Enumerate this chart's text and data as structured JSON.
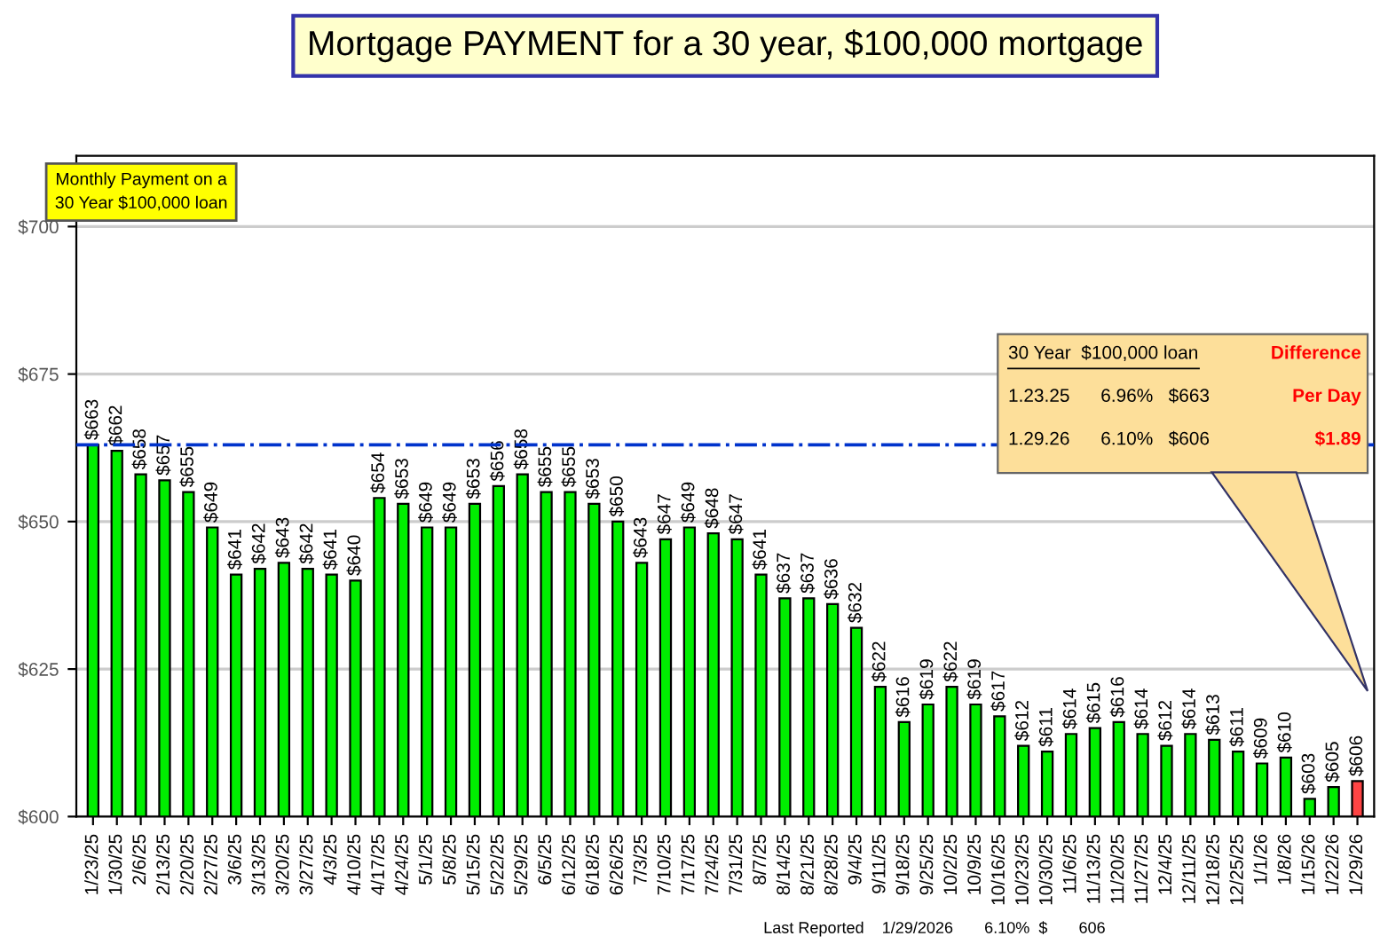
{
  "chart_data": {
    "type": "bar",
    "title": "Mortgage PAYMENT for a 30 year, $100,000 mortgage",
    "categories": [
      "1/23/25",
      "1/30/25",
      "2/6/25",
      "2/13/25",
      "2/20/25",
      "2/27/25",
      "3/6/25",
      "3/13/25",
      "3/20/25",
      "3/27/25",
      "4/3/25",
      "4/10/25",
      "4/17/25",
      "4/24/25",
      "5/1/25",
      "5/8/25",
      "5/15/25",
      "5/22/25",
      "5/29/25",
      "6/5/25",
      "6/12/25",
      "6/18/25",
      "6/26/25",
      "7/3/25",
      "7/10/25",
      "7/17/25",
      "7/24/25",
      "7/31/25",
      "8/7/25",
      "8/14/25",
      "8/21/25",
      "8/28/25",
      "9/4/25",
      "9/11/25",
      "9/18/25",
      "9/25/25",
      "10/2/25",
      "10/9/25",
      "10/16/25",
      "10/23/25",
      "10/30/25",
      "11/6/25",
      "11/13/25",
      "11/20/25",
      "11/27/25",
      "12/4/25",
      "12/11/25",
      "12/18/25",
      "12/25/25",
      "1/1/26",
      "1/8/26",
      "1/15/26",
      "1/22/26",
      "1/29/26"
    ],
    "values": [
      663,
      662,
      658,
      657,
      655,
      649,
      641,
      642,
      643,
      642,
      641,
      640,
      654,
      653,
      649,
      649,
      653,
      656,
      658,
      655,
      655,
      653,
      650,
      643,
      647,
      649,
      648,
      647,
      641,
      637,
      637,
      636,
      632,
      622,
      616,
      619,
      622,
      619,
      617,
      612,
      611,
      614,
      615,
      616,
      614,
      612,
      614,
      613,
      611,
      609,
      610,
      603,
      605,
      606
    ],
    "value_labels": [
      "$663",
      "$662",
      "$658",
      "$657",
      "$655",
      "$649",
      "$641",
      "$642",
      "$643",
      "$642",
      "$641",
      "$640",
      "$654",
      "$653",
      "$649",
      "$649",
      "$653",
      "$656",
      "$658",
      "$655",
      "$655",
      "$653",
      "$650",
      "$643",
      "$647",
      "$649",
      "$648",
      "$647",
      "$641",
      "$637",
      "$637",
      "$636",
      "$632",
      "$622",
      "$616",
      "$619",
      "$622",
      "$619",
      "$617",
      "$612",
      "$611",
      "$614",
      "$615",
      "$616",
      "$614",
      "$612",
      "$614",
      "$613",
      "$611",
      "$609",
      "$610",
      "$603",
      "$605",
      "$606"
    ],
    "colors": [
      "#00ee00",
      "#00ee00",
      "#00ee00",
      "#00ee00",
      "#00ee00",
      "#00ee00",
      "#00ee00",
      "#00ee00",
      "#00ee00",
      "#00ee00",
      "#00ee00",
      "#00ee00",
      "#00ee00",
      "#00ee00",
      "#00ee00",
      "#00ee00",
      "#00ee00",
      "#00ee00",
      "#00ee00",
      "#00ee00",
      "#00ee00",
      "#00ee00",
      "#00ee00",
      "#00ee00",
      "#00ee00",
      "#00ee00",
      "#00ee00",
      "#00ee00",
      "#00ee00",
      "#00ee00",
      "#00ee00",
      "#00ee00",
      "#00ee00",
      "#00ee00",
      "#00ee00",
      "#00ee00",
      "#00ee00",
      "#00ee00",
      "#00ee00",
      "#00ee00",
      "#00ee00",
      "#00ee00",
      "#00ee00",
      "#00ee00",
      "#00ee00",
      "#00ee00",
      "#00ee00",
      "#00ee00",
      "#00ee00",
      "#00ee00",
      "#00ee00",
      "#00ee00",
      "#00ee00",
      "#ff4444"
    ],
    "ylim": [
      600,
      712
    ],
    "yticks": [
      {
        "value": 600,
        "label": "$600"
      },
      {
        "value": 625,
        "label": "$625"
      },
      {
        "value": 650,
        "label": "$650"
      },
      {
        "value": 675,
        "label": "$675"
      },
      {
        "value": 700,
        "label": "$700"
      }
    ],
    "grid": "y",
    "ref_lines": [
      {
        "axis": "y",
        "value": 663,
        "color": "#0033cc",
        "line_style": "dashdot"
      }
    ],
    "annotations": [
      "Monthly Payment on a\n30 Year $100,000 loan",
      "30 Year  $100,000 loan",
      "Difference",
      "1.23.25      6.96%   $663",
      "Per Day",
      "1.29.26      6.10%   $606",
      "$1.89",
      "Last Reported    1/29/2026       6.10%  $       606"
    ]
  }
}
